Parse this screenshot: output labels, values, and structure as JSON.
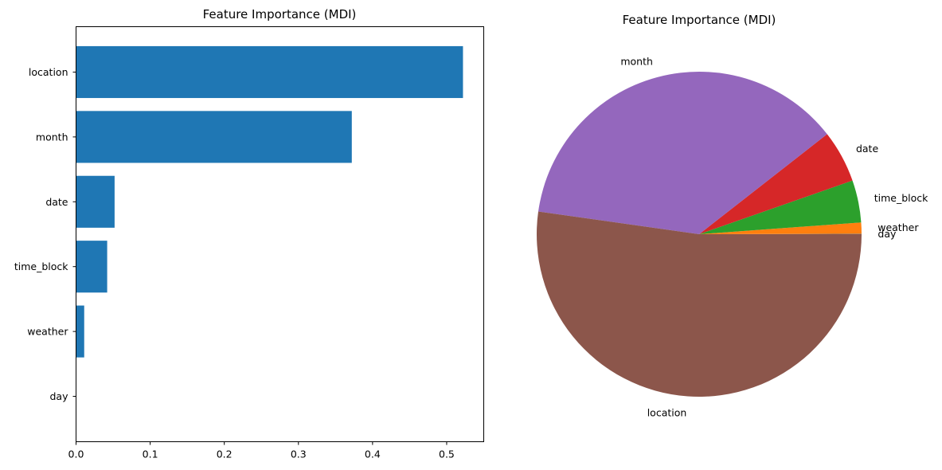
{
  "chart_data": [
    {
      "type": "bar",
      "orientation": "horizontal",
      "title": "Feature Importance (MDI)",
      "xlabel": "",
      "ylabel": "",
      "categories": [
        "location",
        "month",
        "date",
        "time_block",
        "weather",
        "day"
      ],
      "values": [
        0.522,
        0.372,
        0.052,
        0.042,
        0.011,
        0.0005
      ],
      "xlim": [
        0,
        0.55
      ],
      "xticks": [
        0.0,
        0.1,
        0.2,
        0.3,
        0.4,
        0.5
      ],
      "xtick_labels": [
        "0.0",
        "0.1",
        "0.2",
        "0.3",
        "0.4",
        "0.5"
      ],
      "color": "#1f77b4",
      "grid": false
    },
    {
      "type": "pie",
      "title": "Feature Importance (MDI)",
      "labels": [
        "day",
        "weather",
        "time_block",
        "date",
        "month",
        "location"
      ],
      "values": [
        0.0005,
        0.011,
        0.042,
        0.052,
        0.372,
        0.522
      ],
      "colors": [
        "#7f7f7f",
        "#ff7f0e",
        "#2ca02c",
        "#d62728",
        "#9467bd",
        "#8c564b"
      ],
      "start_angle": 0,
      "direction": "counterclockwise"
    }
  ]
}
